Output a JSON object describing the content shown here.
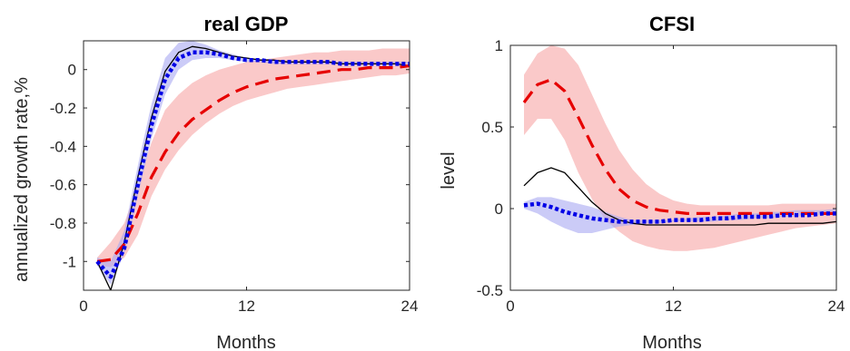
{
  "chart_data": [
    {
      "type": "line",
      "title": "real GDP",
      "xlabel": "Months",
      "ylabel": "annualized growth rate,%",
      "xlim": [
        0,
        24
      ],
      "ylim": [
        -1.15,
        0.15
      ],
      "xticks": [
        0,
        12,
        24
      ],
      "yticks": [
        -1,
        -0.8,
        -0.6,
        -0.4,
        -0.2,
        0
      ],
      "ytick_labels": [
        "-1",
        "-0.8",
        "-0.6",
        "-0.4",
        "-0.2",
        "0"
      ],
      "grid": false,
      "x": [
        1,
        2,
        3,
        4,
        5,
        6,
        7,
        8,
        9,
        10,
        11,
        12,
        13,
        14,
        15,
        16,
        17,
        18,
        19,
        20,
        21,
        22,
        23,
        24
      ],
      "bands": [
        {
          "color": "#f7a5a5",
          "lower": [
            -1.02,
            -1.03,
            -0.98,
            -0.86,
            -0.66,
            -0.52,
            -0.42,
            -0.34,
            -0.28,
            -0.23,
            -0.19,
            -0.16,
            -0.14,
            -0.12,
            -0.1,
            -0.09,
            -0.08,
            -0.07,
            -0.06,
            -0.05,
            -0.04,
            -0.03,
            -0.03,
            -0.02
          ],
          "upper": [
            -0.98,
            -0.9,
            -0.8,
            -0.6,
            -0.38,
            -0.21,
            -0.13,
            -0.07,
            -0.03,
            0.0,
            0.02,
            0.04,
            0.05,
            0.06,
            0.07,
            0.08,
            0.09,
            0.09,
            0.1,
            0.1,
            0.1,
            0.11,
            0.11,
            0.11
          ]
        },
        {
          "color": "#a9a9f2",
          "lower": [
            -1.02,
            -1.12,
            -0.96,
            -0.66,
            -0.36,
            -0.13,
            0.0,
            0.05,
            0.06,
            0.06,
            0.05,
            0.04,
            0.04,
            0.03,
            0.03,
            0.03,
            0.03,
            0.03,
            0.03,
            0.03,
            0.03,
            0.03,
            0.03,
            0.03
          ],
          "upper": [
            -0.98,
            -1.0,
            -0.84,
            -0.5,
            -0.18,
            0.06,
            0.14,
            0.15,
            0.13,
            0.1,
            0.08,
            0.06,
            0.05,
            0.05,
            0.04,
            0.04,
            0.04,
            0.04,
            0.04,
            0.04,
            0.04,
            0.04,
            0.04,
            0.04
          ]
        }
      ],
      "series": [
        {
          "color": "#000000",
          "style": "solid",
          "values": [
            -1.0,
            -1.15,
            -0.9,
            -0.56,
            -0.25,
            -0.01,
            0.09,
            0.12,
            0.11,
            0.09,
            0.07,
            0.06,
            0.05,
            0.05,
            0.04,
            0.04,
            0.04,
            0.04,
            0.03,
            0.03,
            0.03,
            0.03,
            0.03,
            0.02
          ]
        },
        {
          "color": "#e60000",
          "style": "dashed",
          "values": [
            -1.0,
            -0.99,
            -0.91,
            -0.75,
            -0.56,
            -0.43,
            -0.33,
            -0.26,
            -0.21,
            -0.16,
            -0.12,
            -0.09,
            -0.07,
            -0.05,
            -0.04,
            -0.03,
            -0.02,
            -0.01,
            0.0,
            0.0,
            0.01,
            0.01,
            0.01,
            0.02
          ]
        },
        {
          "color": "#0000e6",
          "style": "dotted",
          "values": [
            -1.0,
            -1.08,
            -0.93,
            -0.6,
            -0.29,
            -0.05,
            0.06,
            0.09,
            0.09,
            0.08,
            0.06,
            0.05,
            0.05,
            0.04,
            0.04,
            0.04,
            0.04,
            0.04,
            0.03,
            0.03,
            0.03,
            0.03,
            0.03,
            0.03
          ]
        }
      ]
    },
    {
      "type": "line",
      "title": "CFSI",
      "xlabel": "Months",
      "ylabel": "level",
      "xlim": [
        0,
        24
      ],
      "ylim": [
        -0.5,
        1
      ],
      "xticks": [
        0,
        12,
        24
      ],
      "yticks": [
        -0.5,
        0,
        0.5,
        1
      ],
      "ytick_labels": [
        "-0.5",
        "0",
        "0.5",
        "1"
      ],
      "grid": false,
      "x": [
        1,
        2,
        3,
        4,
        5,
        6,
        7,
        8,
        9,
        10,
        11,
        12,
        13,
        14,
        15,
        16,
        17,
        18,
        19,
        20,
        21,
        22,
        23,
        24
      ],
      "bands": [
        {
          "color": "#f7a5a5",
          "lower": [
            0.45,
            0.55,
            0.55,
            0.42,
            0.22,
            0.06,
            -0.07,
            -0.14,
            -0.2,
            -0.23,
            -0.25,
            -0.26,
            -0.26,
            -0.25,
            -0.24,
            -0.22,
            -0.2,
            -0.18,
            -0.16,
            -0.14,
            -0.12,
            -0.11,
            -0.1,
            -0.09
          ],
          "upper": [
            0.82,
            0.95,
            1.0,
            0.98,
            0.88,
            0.7,
            0.52,
            0.36,
            0.24,
            0.15,
            0.09,
            0.05,
            0.03,
            0.02,
            0.02,
            0.02,
            0.02,
            0.02,
            0.02,
            0.03,
            0.03,
            0.03,
            0.03,
            0.03
          ]
        },
        {
          "color": "#a9a9f2",
          "lower": [
            0.0,
            -0.03,
            -0.08,
            -0.12,
            -0.15,
            -0.15,
            -0.13,
            -0.11,
            -0.1,
            -0.09,
            -0.09,
            -0.08,
            -0.08,
            -0.08,
            -0.08,
            -0.07,
            -0.07,
            -0.06,
            -0.06,
            -0.05,
            -0.05,
            -0.04,
            -0.04,
            -0.04
          ],
          "upper": [
            0.04,
            0.07,
            0.07,
            0.05,
            0.03,
            0.01,
            -0.02,
            -0.05,
            -0.07,
            -0.07,
            -0.07,
            -0.07,
            -0.06,
            -0.05,
            -0.05,
            -0.04,
            -0.03,
            -0.03,
            -0.02,
            -0.02,
            -0.01,
            -0.01,
            -0.01,
            0.0
          ]
        }
      ],
      "series": [
        {
          "color": "#000000",
          "style": "solid",
          "values": [
            0.14,
            0.22,
            0.25,
            0.22,
            0.13,
            0.04,
            -0.03,
            -0.07,
            -0.09,
            -0.1,
            -0.1,
            -0.1,
            -0.1,
            -0.1,
            -0.1,
            -0.1,
            -0.1,
            -0.1,
            -0.09,
            -0.09,
            -0.09,
            -0.09,
            -0.09,
            -0.08
          ]
        },
        {
          "color": "#e60000",
          "style": "dashed",
          "values": [
            0.65,
            0.76,
            0.79,
            0.72,
            0.56,
            0.39,
            0.24,
            0.12,
            0.05,
            0.01,
            -0.01,
            -0.02,
            -0.03,
            -0.03,
            -0.03,
            -0.03,
            -0.03,
            -0.03,
            -0.03,
            -0.03,
            -0.03,
            -0.03,
            -0.03,
            -0.03
          ]
        },
        {
          "color": "#0000e6",
          "style": "dotted",
          "values": [
            0.02,
            0.03,
            0.01,
            -0.02,
            -0.04,
            -0.06,
            -0.07,
            -0.08,
            -0.08,
            -0.08,
            -0.08,
            -0.07,
            -0.07,
            -0.07,
            -0.06,
            -0.06,
            -0.05,
            -0.05,
            -0.05,
            -0.04,
            -0.04,
            -0.04,
            -0.03,
            -0.03
          ]
        }
      ]
    }
  ]
}
